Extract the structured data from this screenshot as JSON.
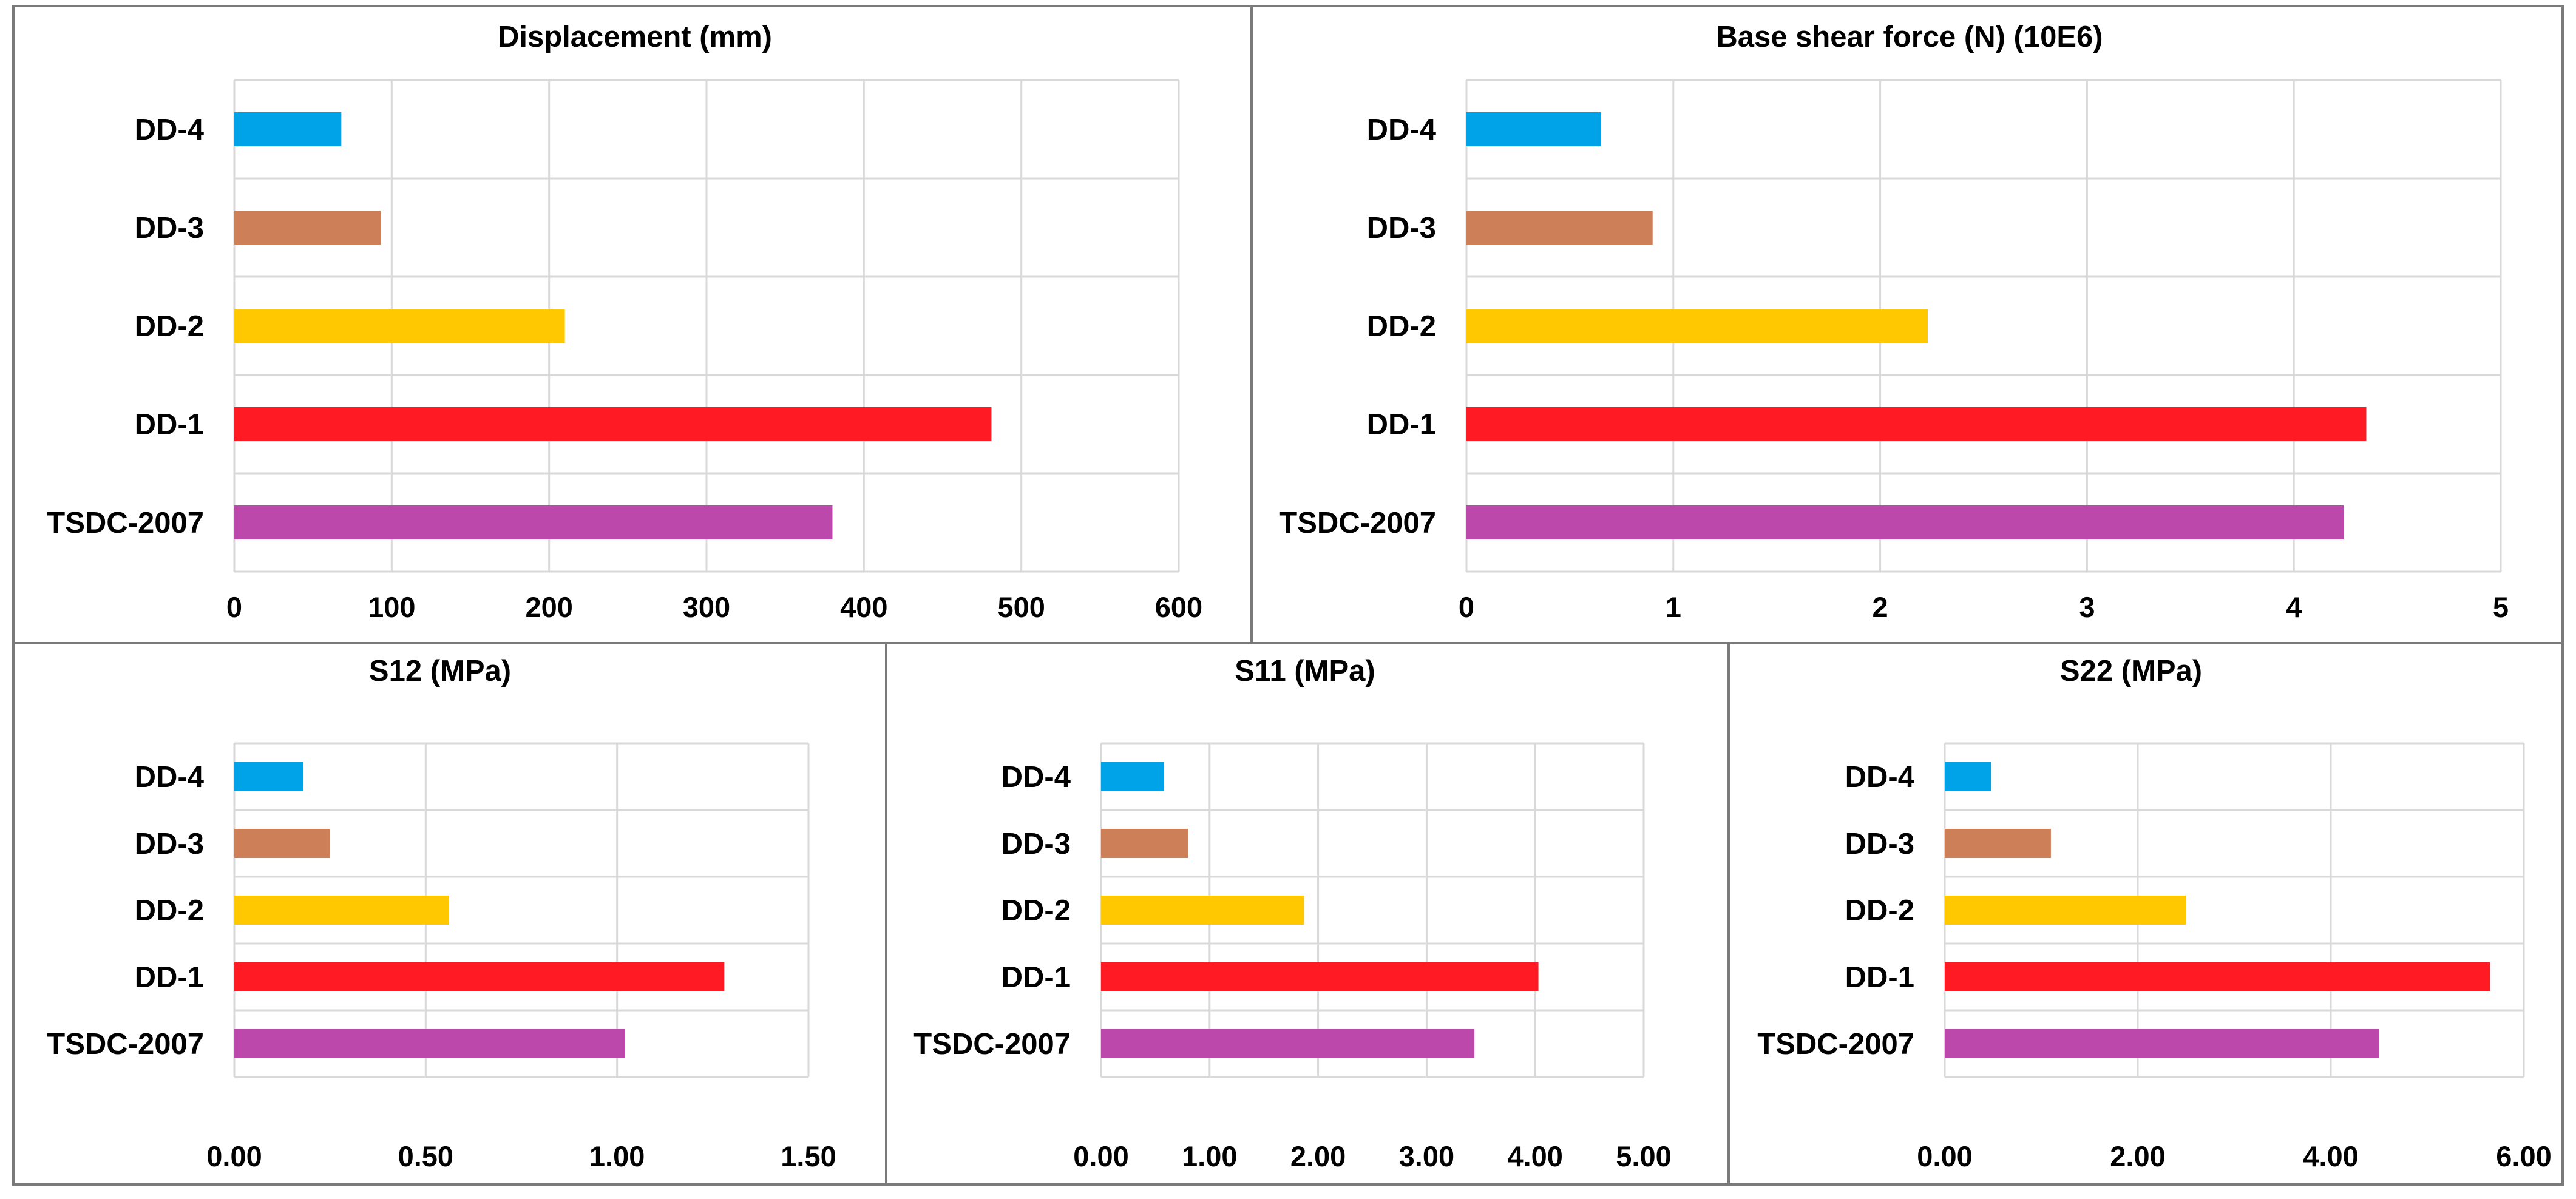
{
  "colors": {
    "DD-4": "#00a2e8",
    "DD-3": "#cd7f58",
    "DD-2": "#ffc800",
    "DD-1": "#ff1a24",
    "TSDC-2007": "#bb48aa"
  },
  "chart_data": [
    {
      "id": "displacement",
      "type": "bar",
      "orientation": "horizontal",
      "title": "Displacement (mm)",
      "categories": [
        "DD-4",
        "DD-3",
        "DD-2",
        "DD-1",
        "TSDC-2007"
      ],
      "values": [
        68,
        93,
        210,
        481,
        380
      ],
      "xlim": [
        0,
        600
      ],
      "ticks": [
        "0",
        "100",
        "200",
        "300",
        "400",
        "500",
        "600"
      ],
      "grid": true
    },
    {
      "id": "base-shear",
      "type": "bar",
      "orientation": "horizontal",
      "title": "Base shear force (N) (10E6)",
      "categories": [
        "DD-4",
        "DD-3",
        "DD-2",
        "DD-1",
        "TSDC-2007"
      ],
      "values": [
        0.65,
        0.9,
        2.23,
        4.35,
        4.24
      ],
      "xlim": [
        0,
        5
      ],
      "ticks": [
        "0",
        "1",
        "2",
        "3",
        "4",
        "5"
      ],
      "grid": true
    },
    {
      "id": "s12",
      "type": "bar",
      "orientation": "horizontal",
      "title": "S12 (MPa)",
      "categories": [
        "DD-4",
        "DD-3",
        "DD-2",
        "DD-1",
        "TSDC-2007"
      ],
      "values": [
        0.18,
        0.25,
        0.56,
        1.28,
        1.02
      ],
      "xlim": [
        0,
        1.5
      ],
      "ticks": [
        "0.00",
        "0.50",
        "1.00",
        "1.50"
      ],
      "grid": true
    },
    {
      "id": "s11",
      "type": "bar",
      "orientation": "horizontal",
      "title": "S11 (MPa)",
      "categories": [
        "DD-4",
        "DD-3",
        "DD-2",
        "DD-1",
        "TSDC-2007"
      ],
      "values": [
        0.58,
        0.8,
        1.87,
        4.03,
        3.44
      ],
      "xlim": [
        0,
        5
      ],
      "ticks": [
        "0.00",
        "1.00",
        "2.00",
        "3.00",
        "4.00",
        "5.00"
      ],
      "grid": true
    },
    {
      "id": "s22",
      "type": "bar",
      "orientation": "horizontal",
      "title": "S22 (MPa)",
      "categories": [
        "DD-4",
        "DD-3",
        "DD-2",
        "DD-1",
        "TSDC-2007"
      ],
      "values": [
        0.48,
        1.1,
        2.5,
        5.65,
        4.5
      ],
      "xlim": [
        0,
        6
      ],
      "ticks": [
        "0.00",
        "2.00",
        "4.00",
        "6.00"
      ],
      "grid": true
    }
  ]
}
